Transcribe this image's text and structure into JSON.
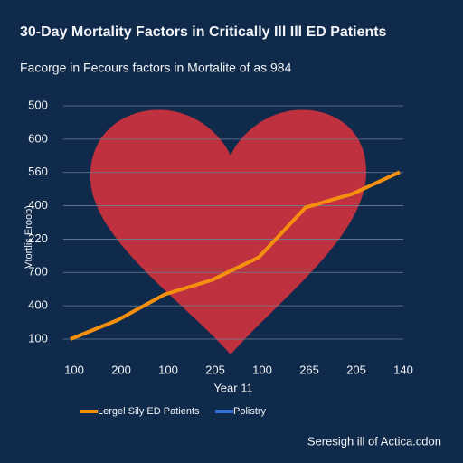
{
  "chart_data": {
    "type": "line",
    "title": "30-Day Mortality Factors in Critically Ill Ill ED Patients",
    "subtitle": "Facorge in Fecours factors in Mortalite of as 984",
    "y_label": "Vtortlis Eroob)",
    "x_label": "Year 11",
    "footer": "Seresigh ill of Actica.cdon",
    "categories": [
      "100",
      "200",
      "100",
      "205",
      "100",
      "265",
      "205",
      "140"
    ],
    "series": [
      {
        "name": "Lergel Sily ED Patients",
        "color": "#f5900f",
        "values": [
          0,
          0.57,
          1.34,
          1.77,
          2.45,
          3.95,
          4.36,
          5.01
        ]
      },
      {
        "name": "Polistry",
        "color": "#2f6fd6",
        "values": [
          null,
          null,
          null,
          null,
          null,
          null,
          null,
          null
        ]
      }
    ],
    "ylim": [
      0,
      7
    ],
    "yticks": [
      {
        "value": 0,
        "label": "100"
      },
      {
        "value": 1,
        "label": "400"
      },
      {
        "value": 2,
        "label": "700"
      },
      {
        "value": 3,
        "label": "220"
      },
      {
        "value": 4,
        "label": "400"
      },
      {
        "value": 5,
        "label": "560"
      },
      {
        "value": 6,
        "label": "600"
      },
      {
        "value": 7,
        "label": "500"
      }
    ],
    "grid": true
  }
}
